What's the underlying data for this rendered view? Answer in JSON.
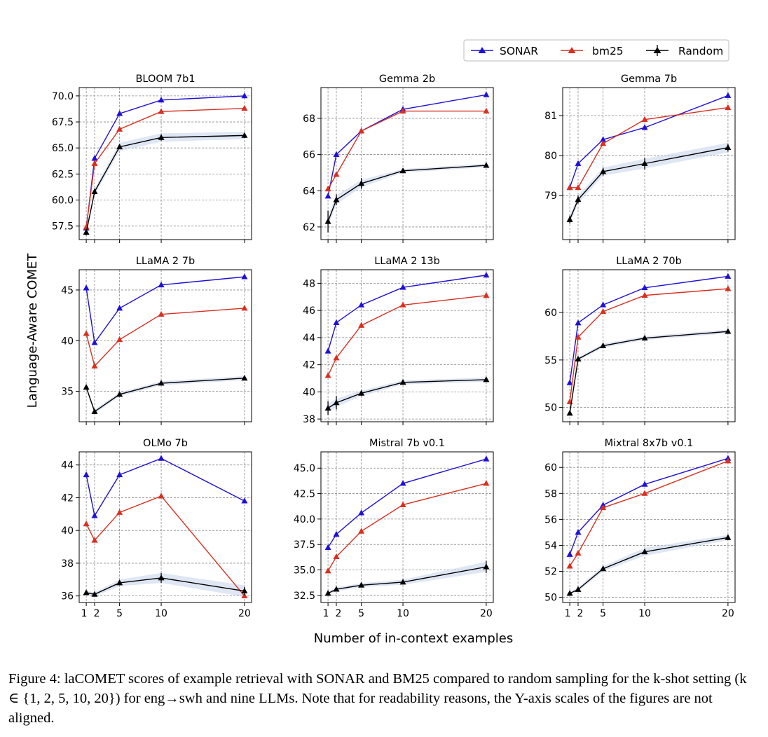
{
  "figure": {
    "xlabel": "Number of in-context examples",
    "ylabel": "Language-Aware COMET",
    "caption": "Figure 4: laCOMET scores of example retrieval with SONAR and BM25 compared to random sampling for the k-shot setting (k ∈ {1, 2, 5, 10, 20}) for eng→swh and nine LLMs. Note that for readability reasons, the Y-axis scales of the figures are not aligned.",
    "legend": [
      {
        "name": "SONAR",
        "color": "#1f10d8"
      },
      {
        "name": "bm25",
        "color": "#d83020"
      },
      {
        "name": "Random",
        "color": "#000000"
      }
    ]
  },
  "chart_data": [
    {
      "type": "line",
      "title": "BLOOM 7b1",
      "x": [
        1,
        2,
        5,
        10,
        20
      ],
      "ylim": [
        56.2,
        70.8
      ],
      "yticks": [
        57.5,
        60.0,
        62.5,
        65.0,
        67.5,
        70.0
      ],
      "ytick_labels": [
        "57.5",
        "60.0",
        "62.5",
        "65.0",
        "67.5",
        "70.0"
      ],
      "xticks": [
        1,
        2,
        5,
        10,
        20
      ],
      "xtick_labels": [
        "1",
        "2",
        "5",
        "10",
        "20"
      ],
      "show_xlabels": false,
      "series": [
        {
          "name": "SONAR",
          "values": [
            57.3,
            64.0,
            68.3,
            69.6,
            70.0
          ]
        },
        {
          "name": "bm25",
          "values": [
            57.4,
            63.5,
            66.8,
            68.5,
            68.8
          ]
        },
        {
          "name": "Random",
          "values": [
            56.9,
            60.8,
            65.1,
            66.0,
            66.2
          ],
          "band": [
            0.15,
            0.3,
            0.4,
            0.4,
            0.35
          ],
          "err": [
            0.3,
            0.3,
            0.2,
            0.3,
            0.25
          ]
        }
      ]
    },
    {
      "type": "line",
      "title": "Gemma 2b",
      "x": [
        1,
        2,
        5,
        10,
        20
      ],
      "ylim": [
        61.3,
        69.7
      ],
      "yticks": [
        62,
        64,
        66,
        68
      ],
      "ytick_labels": [
        "62",
        "64",
        "66",
        "68"
      ],
      "xticks": [
        1,
        2,
        5,
        10,
        20
      ],
      "xtick_labels": [
        "1",
        "2",
        "5",
        "10",
        "20"
      ],
      "show_xlabels": false,
      "series": [
        {
          "name": "SONAR",
          "values": [
            63.7,
            66.0,
            67.3,
            68.5,
            69.3
          ]
        },
        {
          "name": "bm25",
          "values": [
            64.1,
            64.9,
            67.3,
            68.4,
            68.4
          ]
        },
        {
          "name": "Random",
          "values": [
            62.3,
            63.5,
            64.4,
            65.1,
            65.4
          ],
          "band": [
            0.3,
            0.25,
            0.2,
            0.1,
            0.1
          ],
          "err": [
            0.6,
            0.3,
            0.3,
            0.1,
            0.1
          ]
        }
      ]
    },
    {
      "type": "line",
      "title": "Gemma 7b",
      "x": [
        1,
        2,
        5,
        10,
        20
      ],
      "ylim": [
        77.9,
        81.7
      ],
      "yticks": [
        79,
        80,
        81
      ],
      "ytick_labels": [
        "79",
        "80",
        "81"
      ],
      "xticks": [
        1,
        2,
        5,
        10,
        20
      ],
      "xtick_labels": [
        "1",
        "2",
        "5",
        "10",
        "20"
      ],
      "show_xlabels": false,
      "series": [
        {
          "name": "SONAR",
          "values": [
            79.2,
            79.8,
            80.4,
            80.7,
            81.5
          ]
        },
        {
          "name": "bm25",
          "values": [
            79.2,
            79.2,
            80.3,
            80.9,
            81.2
          ]
        },
        {
          "name": "Random",
          "values": [
            78.4,
            78.9,
            79.6,
            79.8,
            80.2
          ],
          "band": [
            0.1,
            0.1,
            0.1,
            0.12,
            0.12
          ],
          "err": [
            0.1,
            0.1,
            0.1,
            0.15,
            0.1
          ]
        }
      ]
    },
    {
      "type": "line",
      "title": "LLaMA 2 7b",
      "x": [
        1,
        2,
        5,
        10,
        20
      ],
      "ylim": [
        32.0,
        47.0
      ],
      "yticks": [
        35,
        40,
        45
      ],
      "ytick_labels": [
        "35",
        "40",
        "45"
      ],
      "xticks": [
        1,
        2,
        5,
        10,
        20
      ],
      "xtick_labels": [
        "1",
        "2",
        "5",
        "10",
        "20"
      ],
      "show_xlabels": false,
      "series": [
        {
          "name": "SONAR",
          "values": [
            45.2,
            39.8,
            43.2,
            45.5,
            46.3
          ]
        },
        {
          "name": "bm25",
          "values": [
            40.7,
            37.5,
            40.1,
            42.6,
            43.2
          ]
        },
        {
          "name": "Random",
          "values": [
            35.4,
            33.0,
            34.7,
            35.8,
            36.3
          ],
          "band": [
            0.2,
            0.2,
            0.2,
            0.2,
            0.2
          ],
          "err": [
            0.2,
            0.2,
            0.2,
            0.2,
            0.2
          ]
        }
      ]
    },
    {
      "type": "line",
      "title": "LLaMA 2 13b",
      "x": [
        1,
        2,
        5,
        10,
        20
      ],
      "ylim": [
        37.8,
        49.0
      ],
      "yticks": [
        38,
        40,
        42,
        44,
        46,
        48
      ],
      "ytick_labels": [
        "38",
        "40",
        "42",
        "44",
        "46",
        "48"
      ],
      "xticks": [
        1,
        2,
        5,
        10,
        20
      ],
      "xtick_labels": [
        "1",
        "2",
        "5",
        "10",
        "20"
      ],
      "show_xlabels": false,
      "series": [
        {
          "name": "SONAR",
          "values": [
            43.0,
            45.1,
            46.4,
            47.7,
            48.6
          ]
        },
        {
          "name": "bm25",
          "values": [
            41.2,
            42.5,
            44.9,
            46.4,
            47.1
          ]
        },
        {
          "name": "Random",
          "values": [
            38.8,
            39.2,
            39.9,
            40.7,
            40.9
          ],
          "band": [
            0.3,
            0.3,
            0.2,
            0.15,
            0.15
          ],
          "err": [
            0.5,
            0.5,
            0.2,
            0.15,
            0.15
          ]
        }
      ]
    },
    {
      "type": "line",
      "title": "LLaMA 2 70b",
      "x": [
        1,
        2,
        5,
        10,
        20
      ],
      "ylim": [
        48.5,
        64.5
      ],
      "yticks": [
        50,
        55,
        60
      ],
      "ytick_labels": [
        "50",
        "55",
        "60"
      ],
      "xticks": [
        1,
        2,
        5,
        10,
        20
      ],
      "xtick_labels": [
        "1",
        "2",
        "5",
        "10",
        "20"
      ],
      "show_xlabels": false,
      "series": [
        {
          "name": "SONAR",
          "values": [
            52.6,
            58.9,
            60.8,
            62.6,
            63.8
          ]
        },
        {
          "name": "bm25",
          "values": [
            50.6,
            57.4,
            60.1,
            61.8,
            62.5
          ]
        },
        {
          "name": "Random",
          "values": [
            49.4,
            55.1,
            56.5,
            57.3,
            58.0
          ],
          "band": [
            0.2,
            0.2,
            0.2,
            0.2,
            0.2
          ],
          "err": [
            0.2,
            0.2,
            0.2,
            0.2,
            0.2
          ]
        }
      ]
    },
    {
      "type": "line",
      "title": "OLMo 7b",
      "x": [
        1,
        2,
        5,
        10,
        20
      ],
      "ylim": [
        35.6,
        44.8
      ],
      "yticks": [
        36,
        38,
        40,
        42,
        44
      ],
      "ytick_labels": [
        "36",
        "38",
        "40",
        "42",
        "44"
      ],
      "xticks": [
        1,
        2,
        5,
        10,
        20
      ],
      "xtick_labels": [
        "1",
        "2",
        "5",
        "10",
        "20"
      ],
      "show_xlabels": true,
      "series": [
        {
          "name": "SONAR",
          "values": [
            43.4,
            40.9,
            43.4,
            44.4,
            41.8
          ]
        },
        {
          "name": "bm25",
          "values": [
            40.4,
            39.4,
            41.1,
            42.1,
            36.0
          ]
        },
        {
          "name": "Random",
          "values": [
            36.2,
            36.1,
            36.8,
            37.1,
            36.3
          ],
          "band": [
            0.1,
            0.12,
            0.2,
            0.3,
            0.35
          ],
          "err": [
            0.1,
            0.1,
            0.15,
            0.3,
            0.25
          ]
        }
      ]
    },
    {
      "type": "line",
      "title": "Mistral 7b v0.1",
      "x": [
        1,
        2,
        5,
        10,
        20
      ],
      "ylim": [
        31.8,
        46.6
      ],
      "yticks": [
        32.5,
        35.0,
        37.5,
        40.0,
        42.5,
        45.0
      ],
      "ytick_labels": [
        "32.5",
        "35.0",
        "37.5",
        "40.0",
        "42.5",
        "45.0"
      ],
      "xticks": [
        1,
        2,
        5,
        10,
        20
      ],
      "xtick_labels": [
        "1",
        "2",
        "5",
        "10",
        "20"
      ],
      "show_xlabels": true,
      "series": [
        {
          "name": "SONAR",
          "values": [
            37.2,
            38.5,
            40.6,
            43.5,
            45.9
          ]
        },
        {
          "name": "bm25",
          "values": [
            34.9,
            36.3,
            38.8,
            41.4,
            43.5
          ]
        },
        {
          "name": "Random",
          "values": [
            32.7,
            33.1,
            33.5,
            33.8,
            35.3
          ],
          "band": [
            0.15,
            0.2,
            0.2,
            0.25,
            0.5
          ],
          "err": [
            0.2,
            0.2,
            0.2,
            0.2,
            0.6
          ]
        }
      ]
    },
    {
      "type": "line",
      "title": "Mixtral 8x7b v0.1",
      "x": [
        1,
        2,
        5,
        10,
        20
      ],
      "ylim": [
        49.6,
        61.2
      ],
      "yticks": [
        50,
        52,
        54,
        56,
        58,
        60
      ],
      "ytick_labels": [
        "50",
        "52",
        "54",
        "56",
        "58",
        "60"
      ],
      "xticks": [
        1,
        2,
        5,
        10,
        20
      ],
      "xtick_labels": [
        "1",
        "2",
        "5",
        "10",
        "20"
      ],
      "show_xlabels": true,
      "series": [
        {
          "name": "SONAR",
          "values": [
            53.3,
            55.0,
            57.1,
            58.7,
            60.7
          ]
        },
        {
          "name": "bm25",
          "values": [
            52.4,
            53.4,
            56.9,
            58.0,
            60.5
          ]
        },
        {
          "name": "Random",
          "values": [
            50.3,
            50.6,
            52.2,
            53.5,
            54.6
          ],
          "band": [
            0.1,
            0.15,
            0.2,
            0.3,
            0.2
          ],
          "err": [
            0.1,
            0.1,
            0.15,
            0.15,
            0.2
          ]
        }
      ]
    }
  ]
}
